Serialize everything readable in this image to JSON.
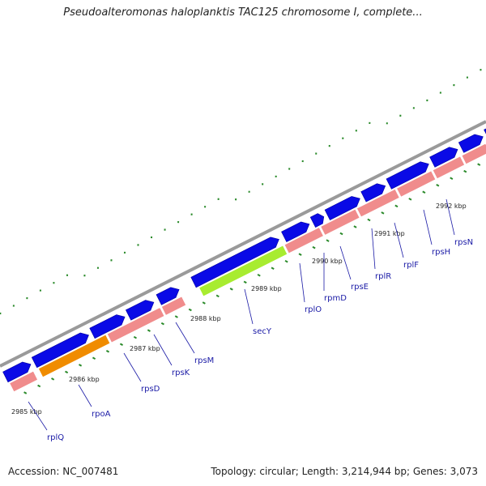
{
  "header": {
    "title": "Pseudoalteromonas haloplanktis TAC125 chromosome I, complete..."
  },
  "footer": {
    "accession": "Accession: NC_007481",
    "info": "Topology: circular; Length: 3,214,944 bp; Genes: 3,073"
  },
  "colors": {
    "forward_gene": "#0a0ae6",
    "reverse_gene": "#f08c8c",
    "highlight_orange": "#f08c00",
    "highlight_green": "#a8ec30",
    "backbone": "#9a9a9a",
    "gc_ticks": "#2a8a2a",
    "label": "#1a1aa6"
  },
  "ticks": [
    {
      "label": "2985 kbp"
    },
    {
      "label": "2986 kbp"
    },
    {
      "label": "2987 kbp"
    },
    {
      "label": "2988 kbp"
    },
    {
      "label": "2989 kbp"
    },
    {
      "label": "2990 kbp"
    },
    {
      "label": "2991 kbp"
    },
    {
      "label": "2992 kbp"
    }
  ],
  "genes": [
    {
      "label": "rplQ"
    },
    {
      "label": "rpoA"
    },
    {
      "label": "rpsD"
    },
    {
      "label": "rpsK"
    },
    {
      "label": "rpsM"
    },
    {
      "label": "secY"
    },
    {
      "label": "rplO"
    },
    {
      "label": "rpmD"
    },
    {
      "label": "rpsE"
    },
    {
      "label": "rplR"
    },
    {
      "label": "rplF"
    },
    {
      "label": "rpsH"
    },
    {
      "label": "rpsN"
    }
  ]
}
